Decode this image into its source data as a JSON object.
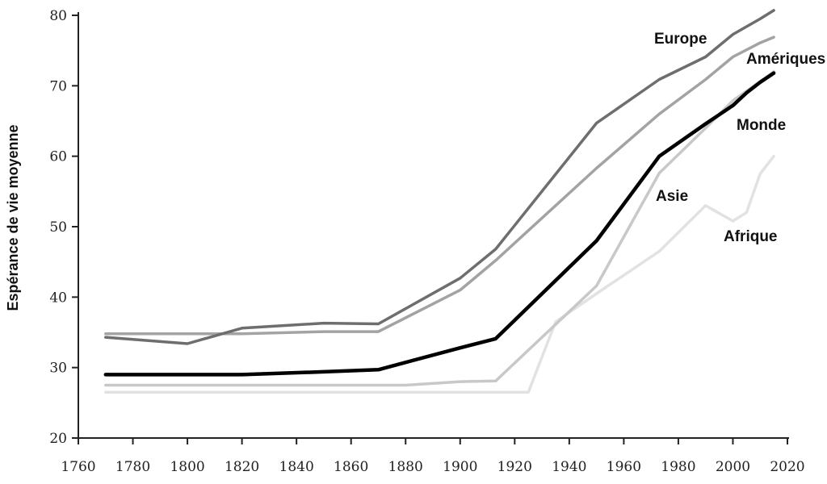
{
  "chart_data": {
    "type": "line",
    "title": "",
    "xlabel": "",
    "ylabel": "Espérance de vie moyenne",
    "xlim": [
      1760,
      2020
    ],
    "ylim": [
      20,
      80
    ],
    "x_ticks": [
      1760,
      1780,
      1800,
      1820,
      1840,
      1860,
      1880,
      1900,
      1920,
      1940,
      1960,
      1980,
      2000,
      2020
    ],
    "y_ticks": [
      20,
      30,
      40,
      50,
      60,
      70,
      80
    ],
    "grid": false,
    "legend": "none",
    "series": [
      {
        "name": "Europe",
        "color": "#6e6e6e",
        "x": [
          1770,
          1800,
          1820,
          1850,
          1870,
          1900,
          1913,
          1950,
          1973,
          1990,
          2000,
          2010,
          2015
        ],
        "y": [
          34.3,
          33.4,
          35.6,
          36.3,
          36.2,
          42.7,
          46.8,
          64.7,
          70.9,
          74.1,
          77.3,
          79.5,
          80.7
        ]
      },
      {
        "name": "Amériques",
        "color": "#a3a3a3",
        "x": [
          1770,
          1820,
          1850,
          1870,
          1900,
          1913,
          1950,
          1973,
          1990,
          2000,
          2010,
          2015
        ],
        "y": [
          34.8,
          34.8,
          35.1,
          35.1,
          41.0,
          45.2,
          58.3,
          66.0,
          70.9,
          74.1,
          76.1,
          76.9
        ]
      },
      {
        "name": "Monde",
        "color": "#000000",
        "x": [
          1770,
          1820,
          1850,
          1870,
          1900,
          1913,
          1950,
          1973,
          1990,
          2000,
          2005,
          2010,
          2015
        ],
        "y": [
          29.0,
          29.0,
          29.4,
          29.7,
          32.8,
          34.1,
          48.0,
          60.0,
          64.6,
          67.2,
          69.0,
          70.5,
          71.8
        ]
      },
      {
        "name": "Asie",
        "color": "#c8c8c8",
        "x": [
          1770,
          1880,
          1900,
          1913,
          1950,
          1973,
          1990,
          2000,
          2010,
          2015
        ],
        "y": [
          27.5,
          27.5,
          28.0,
          28.1,
          41.6,
          57.6,
          64.0,
          67.9,
          70.6,
          72.0
        ]
      },
      {
        "name": "Afrique",
        "color": "#e2e2e2",
        "x": [
          1770,
          1925,
          1935,
          1950,
          1973,
          1990,
          2000,
          2005,
          2010,
          2015
        ],
        "y": [
          26.5,
          26.5,
          36.5,
          40.5,
          46.5,
          53.0,
          50.8,
          52.0,
          57.5,
          60.0
        ]
      }
    ]
  }
}
